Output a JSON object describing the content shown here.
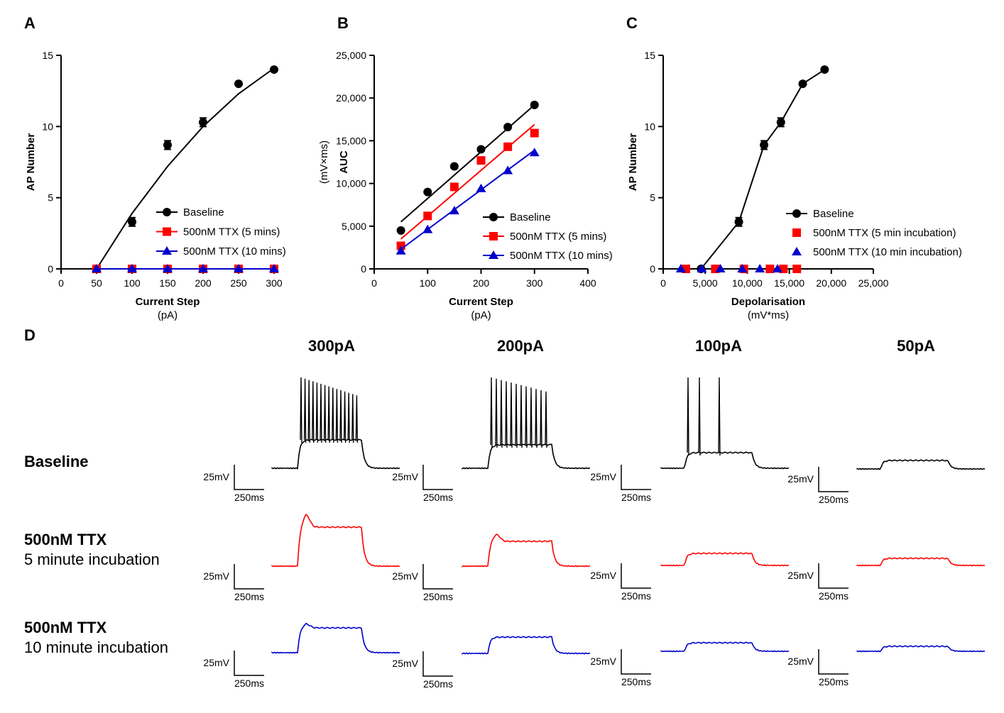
{
  "chart_data": [
    {
      "type": "line",
      "label": "A",
      "y_label": "AP Number",
      "x_label": "Current Step",
      "x_unit": "(pA)",
      "xlim": [
        0,
        300
      ],
      "xticks": [
        0,
        50,
        100,
        150,
        200,
        250,
        300
      ],
      "ylim": [
        0,
        15
      ],
      "yticks": [
        0,
        5,
        10,
        15
      ],
      "x": [
        50,
        100,
        150,
        200,
        250,
        300
      ],
      "series": [
        {
          "name": "Baseline",
          "color": "#000000",
          "marker": "circle",
          "values": [
            0,
            3.3,
            8.7,
            10.3,
            13,
            14
          ],
          "errors": [
            0,
            0.3,
            0.3,
            0.3,
            0,
            0
          ],
          "fit": [
            0,
            3.9,
            7.2,
            10,
            12.3,
            14.1
          ]
        },
        {
          "name": "500nM TTX (5 mins)",
          "color": "#ff0000",
          "marker": "square",
          "values": [
            0,
            0,
            0,
            0,
            0,
            0
          ],
          "fit": [
            0,
            0,
            0,
            0,
            0,
            0
          ]
        },
        {
          "name": "500nM TTX (10 mins)",
          "color": "#0000cc",
          "marker": "triangle",
          "values": [
            0,
            0,
            0,
            0,
            0,
            0
          ],
          "fit": [
            0,
            0,
            0,
            0,
            0,
            0
          ]
        }
      ]
    },
    {
      "type": "line",
      "label": "B",
      "y_label": "AUC",
      "y_unit": "(mV×ms)",
      "x_label": "Current Step",
      "x_unit": "(pA)",
      "xlim": [
        0,
        400
      ],
      "xticks": [
        0,
        100,
        200,
        300,
        400
      ],
      "ylim": [
        0,
        25000
      ],
      "yticks": [
        0,
        {
          "value": 5000,
          "label": "5,000"
        },
        {
          "value": 10000,
          "label": "10,000"
        },
        {
          "value": 15000,
          "label": "15,000"
        },
        {
          "value": 20000,
          "label": "20,000"
        },
        {
          "value": 25000,
          "label": "25,000"
        }
      ],
      "x": [
        50,
        100,
        150,
        200,
        250,
        300
      ],
      "series": [
        {
          "name": "Baseline",
          "color": "#000000",
          "marker": "circle",
          "values": [
            4500,
            9000,
            12000,
            14000,
            16600,
            19200
          ],
          "fit": [
            5500,
            8240,
            10980,
            13720,
            16460,
            19200
          ]
        },
        {
          "name": "500nM TTX (5 mins)",
          "color": "#ff0000",
          "marker": "square",
          "values": [
            2700,
            6200,
            9600,
            12700,
            14300,
            15900
          ],
          "fit": [
            3500,
            6180,
            8860,
            11540,
            14220,
            16900
          ]
        },
        {
          "name": "500nM TTX (10 mins)",
          "color": "#0000cc",
          "marker": "triangle",
          "values": [
            2100,
            4600,
            6800,
            9400,
            11500,
            13600
          ],
          "fit": [
            2300,
            4620,
            6940,
            9260,
            11580,
            13900
          ]
        }
      ]
    },
    {
      "type": "scatter",
      "label": "C",
      "y_label": "AP Number",
      "x_label": "Depolarisation",
      "x_unit": "(mV*ms)",
      "xlim": [
        0,
        25000
      ],
      "xticks": [
        0,
        {
          "value": 5000,
          "label": "5,000"
        },
        {
          "value": 10000,
          "label": "10,000"
        },
        {
          "value": 15000,
          "label": "15,000"
        },
        {
          "value": 20000,
          "label": "20,000"
        },
        {
          "value": 25000,
          "label": "25,000"
        }
      ],
      "ylim": [
        0,
        15
      ],
      "yticks": [
        0,
        5,
        10,
        15
      ],
      "series": [
        {
          "name": "Baseline",
          "color": "#000000",
          "marker": "circle",
          "line": true,
          "x": [
            4500,
            9000,
            12000,
            14000,
            16600,
            19200
          ],
          "values": [
            0,
            3.3,
            8.7,
            10.3,
            13,
            14
          ],
          "errors": [
            0,
            0.3,
            0.3,
            0.3,
            0,
            0
          ]
        },
        {
          "name": "500nM TTX (5 min incubation)",
          "color": "#ff0000",
          "marker": "square",
          "line": false,
          "x": [
            2700,
            6200,
            9600,
            12700,
            14300,
            15900
          ],
          "values": [
            0,
            0,
            0,
            0,
            0,
            0
          ]
        },
        {
          "name": "500nM TTX (10 min incubation)",
          "color": "#0000cc",
          "marker": "triangle",
          "line": false,
          "x": [
            2100,
            4600,
            6800,
            9400,
            11500,
            13600
          ],
          "values": [
            0,
            0,
            0,
            0,
            0,
            0
          ]
        }
      ]
    }
  ],
  "panel_d": {
    "label": "D",
    "columns": [
      "300pA",
      "200pA",
      "100pA",
      "50pA"
    ],
    "rows": [
      {
        "title": "Baseline"
      },
      {
        "title": "500nM TTX",
        "subtitle": "5 minute incubation"
      },
      {
        "title": "500nM TTX",
        "subtitle": "10 minute incubation"
      }
    ],
    "scale_bar": {
      "voltage": "25mV",
      "time": "250ms"
    }
  }
}
